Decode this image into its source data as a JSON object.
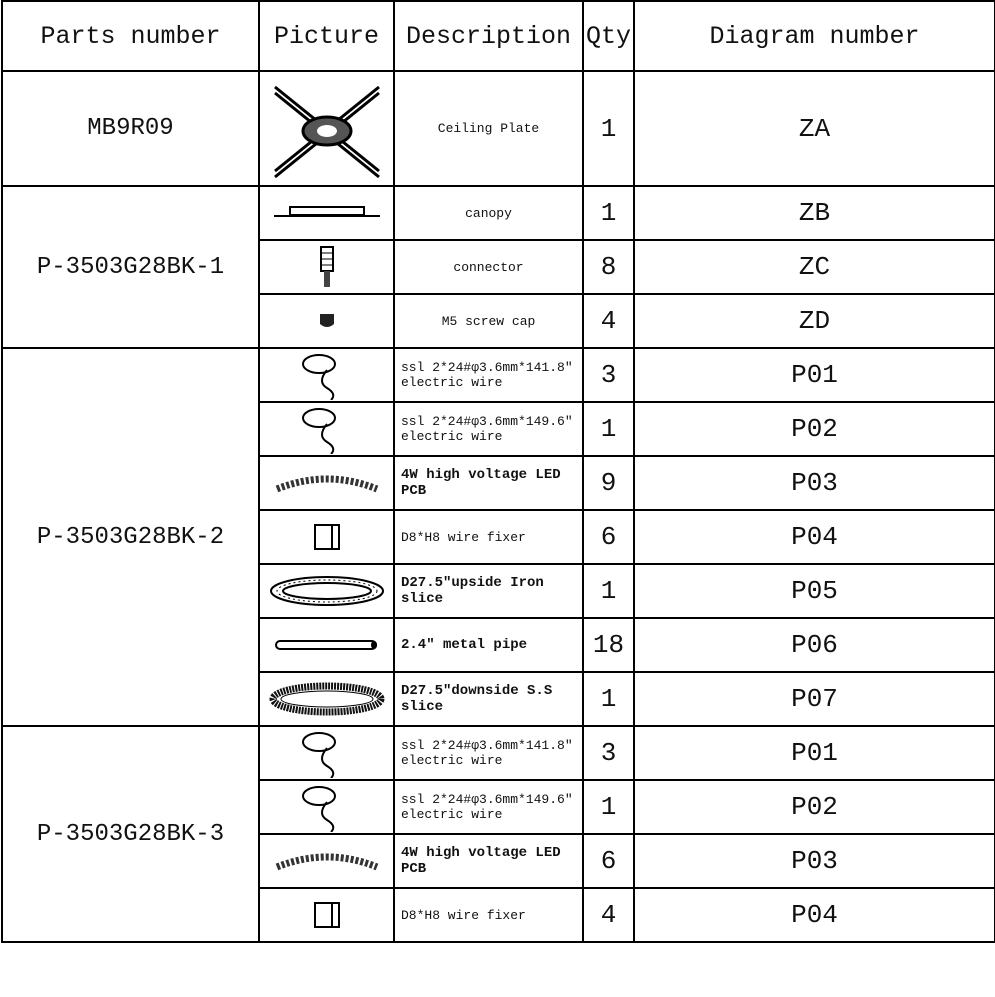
{
  "table": {
    "header": [
      "Parts number",
      "Picture",
      "Description",
      "Qty",
      "Diagram number"
    ],
    "groups": [
      {
        "part": "MB9R09",
        "items": [
          {
            "description": "Ceiling Plate",
            "qty": 1,
            "diagram": "ZA"
          }
        ]
      },
      {
        "part": "P-3503G28BK-1",
        "items": [
          {
            "description": "canopy",
            "qty": 1,
            "diagram": "ZB"
          },
          {
            "description": "connector",
            "qty": 8,
            "diagram": "ZC"
          },
          {
            "description": "M5 screw cap",
            "qty": 4,
            "diagram": "ZD"
          }
        ]
      },
      {
        "part": "P-3503G28BK-2",
        "items": [
          {
            "description": "ssl 2*24#φ3.6mm*141.8″ electric wire",
            "qty": 3,
            "diagram": "P01"
          },
          {
            "description": "ssl 2*24#φ3.6mm*149.6″ electric wire",
            "qty": 1,
            "diagram": "P02"
          },
          {
            "description": "4W high voltage LED PCB",
            "qty": 9,
            "diagram": "P03"
          },
          {
            "description": "D8*H8 wire fixer",
            "qty": 6,
            "diagram": "P04"
          },
          {
            "description": "D27.5″upside Iron slice",
            "qty": 1,
            "diagram": "P05"
          },
          {
            "description": "2.4″ metal pipe",
            "qty": 18,
            "diagram": "P06"
          },
          {
            "description": "D27.5″downside S.S slice",
            "qty": 1,
            "diagram": "P07"
          }
        ]
      },
      {
        "part": "P-3503G28BK-3",
        "items": [
          {
            "description": "ssl 2*24#φ3.6mm*141.8″ electric wire",
            "qty": 3,
            "diagram": "P01"
          },
          {
            "description": "ssl 2*24#φ3.6mm*149.6″ electric wire",
            "qty": 1,
            "diagram": "P02"
          },
          {
            "description": "4W high voltage LED PCB",
            "qty": 6,
            "diagram": "P03"
          },
          {
            "description": "D8*H8 wire fixer",
            "qty": 4,
            "diagram": "P04"
          }
        ]
      }
    ]
  }
}
